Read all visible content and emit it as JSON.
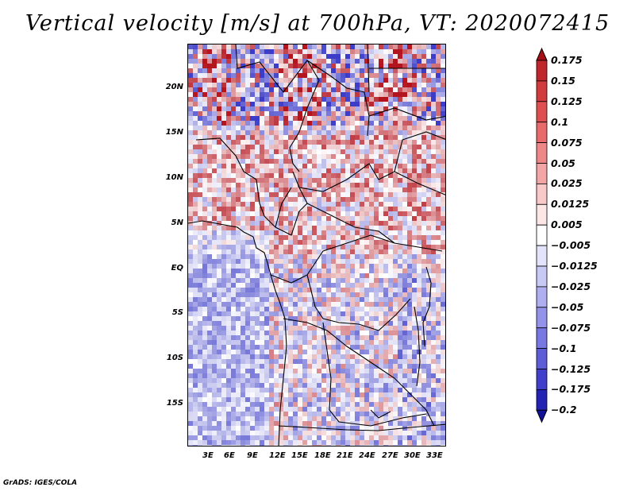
{
  "title": "Vertical velocity [m/s] at 700hPa, VT: 2020072415",
  "credit": "GrADS: IGES/COLA",
  "map": {
    "lat_labels": [
      "20N",
      "15N",
      "10N",
      "5N",
      "EQ",
      "5S",
      "10S",
      "15S"
    ],
    "lon_labels": [
      "3E",
      "6E",
      "9E",
      "12E",
      "15E",
      "18E",
      "21E",
      "24E",
      "27E",
      "30E",
      "33E"
    ]
  },
  "colorbar": {
    "labels": [
      "0.175",
      "0.15",
      "0.125",
      "0.1",
      "0.075",
      "0.05",
      "0.025",
      "0.0125",
      "0.005",
      "−0.005",
      "−0.0125",
      "−0.025",
      "−0.05",
      "−0.075",
      "−0.1",
      "−0.125",
      "−0.175",
      "−0.2"
    ],
    "colors": [
      "#a50f15",
      "#c0272d",
      "#d33c3c",
      "#e04f4f",
      "#e86a6a",
      "#ee8787",
      "#f4a6a6",
      "#f9c8c8",
      "#fde6e6",
      "#ffffff",
      "#e3e3fb",
      "#c9c9f6",
      "#aeaef0",
      "#9393ea",
      "#7878e2",
      "#5d5dd8",
      "#4040cc",
      "#2222b4",
      "#11119a"
    ]
  }
}
